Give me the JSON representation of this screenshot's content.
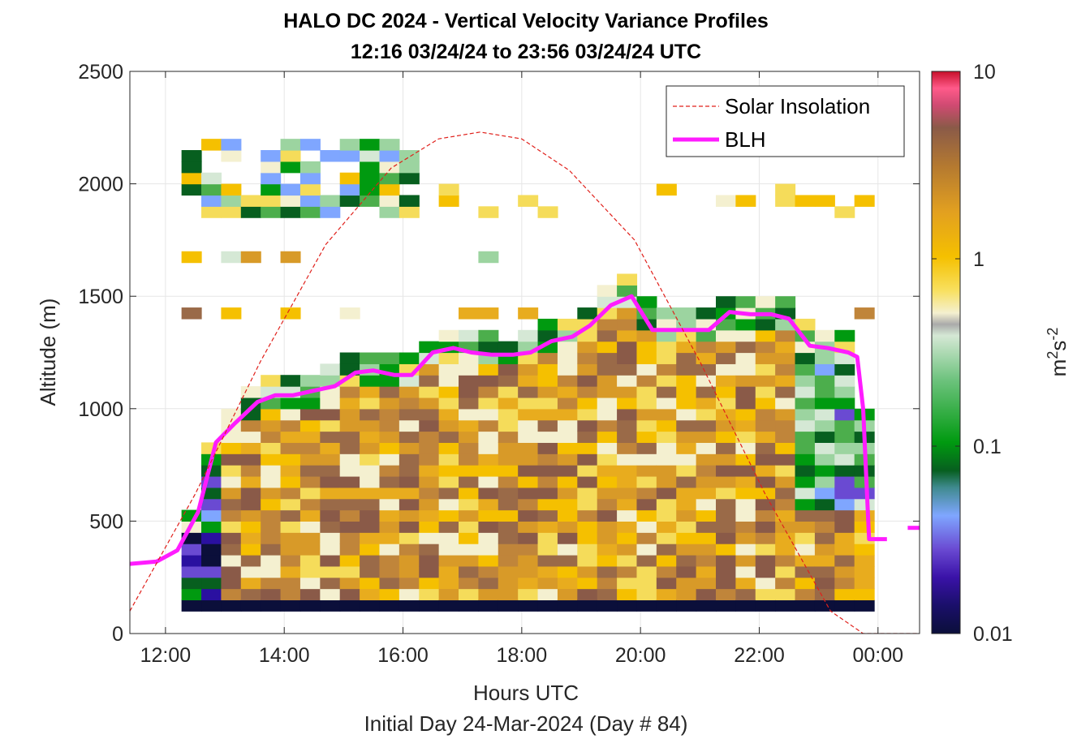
{
  "chart_data": {
    "type": "heatmap",
    "title_line1": "HALO DC 2024 - Vertical Velocity Variance Profiles",
    "title_line2": "12:16 03/24/24 to 23:56 03/24/24  UTC",
    "xlabel": "Hours UTC",
    "xlabel2": "Initial Day 24-Mar-2024 (Day # 84)",
    "ylabel": "Altitude (m)",
    "xlim": [
      11.4,
      24.7
    ],
    "ylim": [
      0,
      2500
    ],
    "x_ticks": [
      {
        "value": 12,
        "label": "12:00"
      },
      {
        "value": 14,
        "label": "14:00"
      },
      {
        "value": 16,
        "label": "16:00"
      },
      {
        "value": 18,
        "label": "18:00"
      },
      {
        "value": 20,
        "label": "20:00"
      },
      {
        "value": 22,
        "label": "22:00"
      },
      {
        "value": 24,
        "label": "00:00"
      }
    ],
    "y_ticks": [
      {
        "value": 0,
        "label": "0"
      },
      {
        "value": 500,
        "label": "500"
      },
      {
        "value": 1000,
        "label": "1000"
      },
      {
        "value": 1500,
        "label": "1500"
      },
      {
        "value": 2000,
        "label": "2000"
      },
      {
        "value": 2500,
        "label": "2500"
      }
    ],
    "grid": true,
    "colorbar": {
      "label_base": "m",
      "label_sup1": "2",
      "label_mid": "s",
      "label_sup2": "-2",
      "scale": "log",
      "range": [
        0.01,
        10
      ],
      "ticks": [
        {
          "value": 0.01,
          "label": "0.01"
        },
        {
          "value": 0.1,
          "label": "0.1"
        },
        {
          "value": 1,
          "label": "1"
        },
        {
          "value": 10,
          "label": "10"
        }
      ]
    },
    "legend": {
      "placement": "top-right",
      "entries": [
        {
          "label": "Solar Insolation",
          "color": "#e0201b",
          "style": "dashed"
        },
        {
          "label": "BLH",
          "color": "#ff1cff",
          "style": "solid"
        }
      ]
    },
    "heatmap": {
      "time_start": 12.27,
      "time_step": 0.3333,
      "alt_step": 50,
      "columns": 35
    },
    "series": [
      {
        "name": "BLH",
        "color": "#ff1cff",
        "x": [
          11.4,
          11.85,
          12.2,
          12.55,
          12.85,
          13.15,
          13.55,
          13.85,
          14.15,
          14.5,
          14.85,
          15.2,
          15.5,
          15.85,
          16.15,
          16.5,
          16.85,
          17.15,
          17.5,
          17.85,
          18.15,
          18.5,
          18.85,
          19.15,
          19.5,
          19.85,
          20.2,
          20.5,
          20.85,
          21.15,
          21.5,
          21.85,
          22.2,
          22.5,
          22.85,
          23.15,
          23.5,
          23.65,
          23.75,
          23.85,
          24.15
        ],
        "y": [
          310,
          320,
          370,
          540,
          850,
          930,
          1030,
          1060,
          1060,
          1080,
          1100,
          1160,
          1170,
          1150,
          1150,
          1250,
          1270,
          1250,
          1240,
          1240,
          1250,
          1300,
          1320,
          1370,
          1460,
          1500,
          1350,
          1350,
          1350,
          1350,
          1430,
          1420,
          1420,
          1400,
          1280,
          1270,
          1250,
          1230,
          1000,
          420,
          420
        ]
      },
      {
        "name": "BLH",
        "color": "#ff1cff",
        "x": [
          24.5,
          24.7
        ],
        "y": [
          470,
          470
        ]
      },
      {
        "name": "Solar Insolation",
        "color": "#e0201b",
        "x": [
          11.4,
          12.5,
          13.6,
          14.7,
          15.8,
          16.6,
          17.3,
          18.0,
          18.8,
          19.9,
          21.0,
          22.1,
          23.2,
          23.75,
          24.7
        ],
        "y": [
          100,
          620,
          1210,
          1730,
          2070,
          2200,
          2230,
          2200,
          2060,
          1750,
          1210,
          620,
          100,
          0,
          0
        ]
      }
    ]
  }
}
